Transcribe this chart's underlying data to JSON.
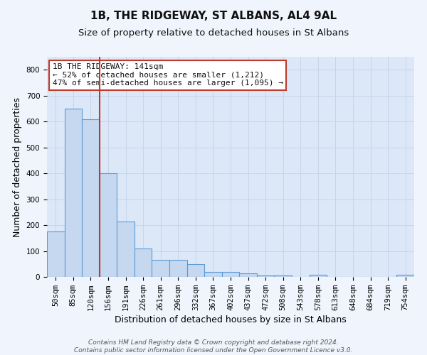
{
  "title": "1B, THE RIDGEWAY, ST ALBANS, AL4 9AL",
  "subtitle": "Size of property relative to detached houses in St Albans",
  "xlabel": "Distribution of detached houses by size in St Albans",
  "ylabel": "Number of detached properties",
  "bar_labels": [
    "50sqm",
    "85sqm",
    "120sqm",
    "156sqm",
    "191sqm",
    "226sqm",
    "261sqm",
    "296sqm",
    "332sqm",
    "367sqm",
    "402sqm",
    "437sqm",
    "472sqm",
    "508sqm",
    "543sqm",
    "578sqm",
    "613sqm",
    "648sqm",
    "684sqm",
    "719sqm",
    "754sqm"
  ],
  "bar_heights": [
    175,
    650,
    610,
    400,
    215,
    110,
    65,
    65,
    50,
    18,
    18,
    13,
    5,
    5,
    0,
    8,
    0,
    0,
    0,
    0,
    8
  ],
  "bar_color": "#c5d8f0",
  "bar_edge_color": "#5b9bd5",
  "bar_edge_width": 0.8,
  "vline_x_index": 2.5,
  "vline_color": "#c0392b",
  "annotation_text": "1B THE RIDGEWAY: 141sqm\n← 52% of detached houses are smaller (1,212)\n47% of semi-detached houses are larger (1,095) →",
  "annotation_box_color": "#ffffff",
  "annotation_box_edge_color": "#c0392b",
  "ylim": [
    0,
    850
  ],
  "yticks": [
    0,
    100,
    200,
    300,
    400,
    500,
    600,
    700,
    800
  ],
  "grid_color": "#c8d4e8",
  "background_color": "#dce8f8",
  "fig_background_color": "#f0f5fd",
  "footnote": "Contains HM Land Registry data © Crown copyright and database right 2024.\nContains public sector information licensed under the Open Government Licence v3.0.",
  "title_fontsize": 11,
  "subtitle_fontsize": 9.5,
  "xlabel_fontsize": 9,
  "ylabel_fontsize": 9,
  "tick_fontsize": 7.5,
  "annotation_fontsize": 8,
  "footnote_fontsize": 6.5
}
